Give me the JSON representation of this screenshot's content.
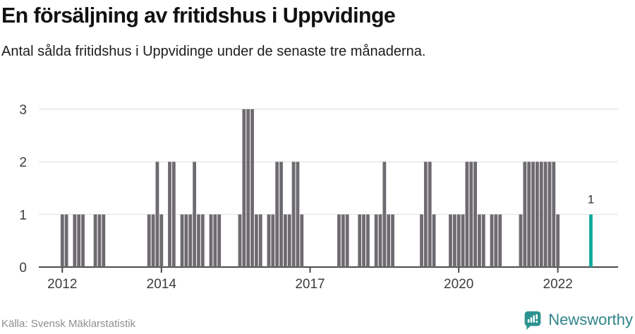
{
  "title": "En försäljning av fritidshus i Uppvidinge",
  "subtitle": "Antal sålda fritidshus i Uppvidinge under de senaste tre månaderna.",
  "source": "Källa: Svensk Mäklarstatistik",
  "brand": {
    "name": "Newsworthy",
    "icon": "newsworthy-speech-bubble-bar-chart-icon"
  },
  "colors": {
    "bar": "#6E6A70",
    "highlight": "#10A89C",
    "grid": "#E8E8E8",
    "axis": "#4B4B4B",
    "axis_text": "#3C3C3C",
    "value_label": "#333333",
    "brand_teal": "#2F8489"
  },
  "chart_data": {
    "type": "bar",
    "title": "En försäljning av fritidshus i Uppvidinge",
    "subtitle": "Antal sålda fritidshus i Uppvidinge under de senaste tre månaderna.",
    "xlabel": "",
    "ylabel": "",
    "ylim": [
      0,
      3
    ],
    "yticks": [
      0,
      1,
      2,
      3
    ],
    "xticks": [
      "2012",
      "2014",
      "2017",
      "2020",
      "2022"
    ],
    "grid": "horizontal",
    "x_axis_span": [
      "2011-07",
      "2022-12"
    ],
    "note": "monthly bars; months not listed have value 0",
    "values": [
      [
        "2012-01",
        1
      ],
      [
        "2012-02",
        1
      ],
      [
        "2012-04",
        1
      ],
      [
        "2012-05",
        1
      ],
      [
        "2012-06",
        1
      ],
      [
        "2012-09",
        1
      ],
      [
        "2012-10",
        1
      ],
      [
        "2012-11",
        1
      ],
      [
        "2013-10",
        1
      ],
      [
        "2013-11",
        1
      ],
      [
        "2013-12",
        2
      ],
      [
        "2014-01",
        1
      ],
      [
        "2014-03",
        2
      ],
      [
        "2014-04",
        2
      ],
      [
        "2014-06",
        1
      ],
      [
        "2014-07",
        1
      ],
      [
        "2014-08",
        1
      ],
      [
        "2014-09",
        2
      ],
      [
        "2014-10",
        1
      ],
      [
        "2014-11",
        1
      ],
      [
        "2015-01",
        1
      ],
      [
        "2015-02",
        1
      ],
      [
        "2015-03",
        1
      ],
      [
        "2015-08",
        1
      ],
      [
        "2015-09",
        3
      ],
      [
        "2015-10",
        3
      ],
      [
        "2015-11",
        3
      ],
      [
        "2015-12",
        1
      ],
      [
        "2016-01",
        1
      ],
      [
        "2016-03",
        1
      ],
      [
        "2016-04",
        1
      ],
      [
        "2016-05",
        2
      ],
      [
        "2016-06",
        2
      ],
      [
        "2016-07",
        1
      ],
      [
        "2016-08",
        1
      ],
      [
        "2016-09",
        2
      ],
      [
        "2016-10",
        2
      ],
      [
        "2016-11",
        1
      ],
      [
        "2017-08",
        1
      ],
      [
        "2017-09",
        1
      ],
      [
        "2017-10",
        1
      ],
      [
        "2018-01",
        1
      ],
      [
        "2018-02",
        1
      ],
      [
        "2018-03",
        1
      ],
      [
        "2018-05",
        1
      ],
      [
        "2018-06",
        1
      ],
      [
        "2018-07",
        2
      ],
      [
        "2018-08",
        1
      ],
      [
        "2018-09",
        1
      ],
      [
        "2019-04",
        1
      ],
      [
        "2019-05",
        2
      ],
      [
        "2019-06",
        2
      ],
      [
        "2019-07",
        1
      ],
      [
        "2019-11",
        1
      ],
      [
        "2019-12",
        1
      ],
      [
        "2020-01",
        1
      ],
      [
        "2020-02",
        1
      ],
      [
        "2020-03",
        2
      ],
      [
        "2020-04",
        2
      ],
      [
        "2020-05",
        2
      ],
      [
        "2020-06",
        1
      ],
      [
        "2020-07",
        1
      ],
      [
        "2020-09",
        1
      ],
      [
        "2020-10",
        1
      ],
      [
        "2020-11",
        1
      ],
      [
        "2021-04",
        1
      ],
      [
        "2021-05",
        2
      ],
      [
        "2021-06",
        2
      ],
      [
        "2021-07",
        2
      ],
      [
        "2021-08",
        2
      ],
      [
        "2021-09",
        2
      ],
      [
        "2021-10",
        2
      ],
      [
        "2021-11",
        2
      ],
      [
        "2021-12",
        2
      ],
      [
        "2022-01",
        1
      ],
      [
        "2022-09",
        1
      ]
    ],
    "highlight": {
      "month": "2022-09",
      "value": 1,
      "label": "1"
    }
  }
}
